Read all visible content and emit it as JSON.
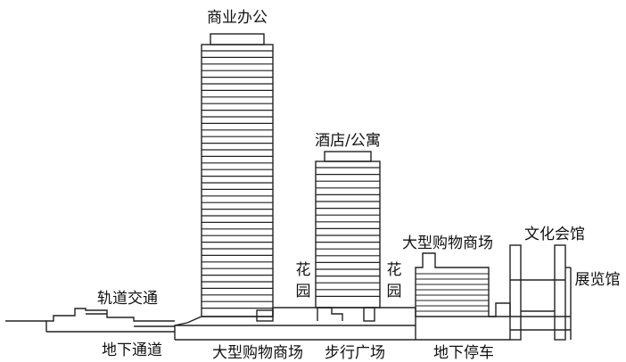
{
  "labels": {
    "office": "商业办公",
    "hotel": "酒店/公寓",
    "garden_left": [
      "花",
      "园"
    ],
    "garden_right": [
      "花",
      "园"
    ],
    "mall_upper": "大型购物商场",
    "culture_hall": "文化会馆",
    "exhibition_hall": "展览馆",
    "rail_transit": "轨道交通",
    "underground_passage": "地下通道",
    "mall_lower": "大型购物商场",
    "pedestrian_plaza": "步行广场",
    "underground_parking": "地下停车"
  }
}
